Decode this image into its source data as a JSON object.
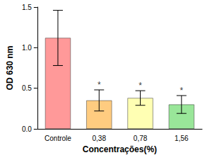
{
  "chart_data": {
    "type": "bar",
    "x_label": "Concentrações(%)",
    "y_label": "OD 630 nm",
    "categories": [
      "Controle",
      "0,38",
      "0,78",
      "1,56"
    ],
    "values": [
      1.12,
      0.35,
      0.38,
      0.3
    ],
    "errors": [
      0.34,
      0.13,
      0.09,
      0.11
    ],
    "annotations": [
      null,
      "*",
      "*",
      "*"
    ],
    "colors": [
      "#ff9999",
      "#ffcc80",
      "#ffffb3",
      "#99e699"
    ],
    "ylim": [
      0,
      1.5
    ],
    "yticks": [
      {
        "value": 0,
        "label": "0.0"
      },
      {
        "value": 0.5,
        "label": "0.5"
      },
      {
        "value": 1.0,
        "label": "1.0"
      },
      {
        "value": 1.5,
        "label": "1.5"
      }
    ],
    "grid": false
  }
}
